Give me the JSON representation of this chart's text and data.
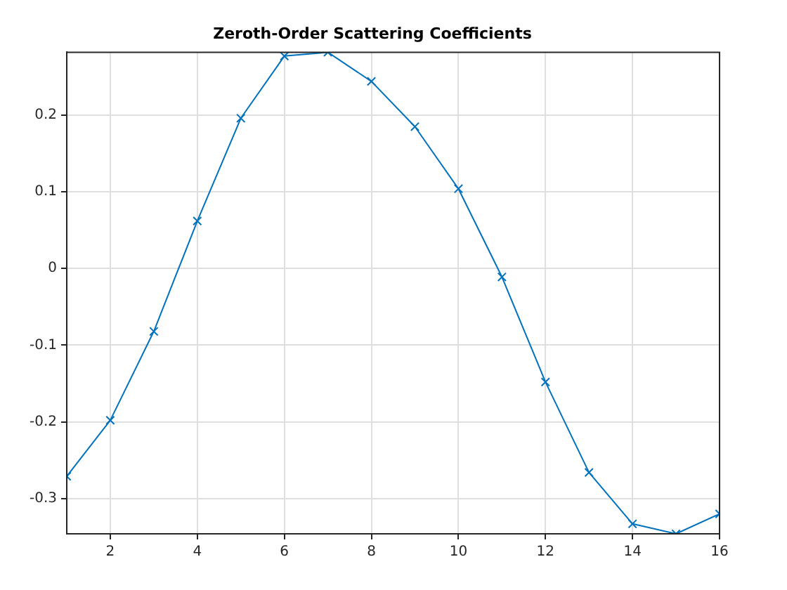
{
  "chart_data": {
    "type": "line",
    "title": "Zeroth-Order Scattering Coefficients",
    "x": [
      1,
      2,
      3,
      4,
      5,
      6,
      7,
      8,
      9,
      10,
      11,
      12,
      13,
      14,
      15,
      16
    ],
    "series": [
      {
        "color": "#0072bd",
        "values": [
          -0.271,
          -0.198,
          -0.082,
          0.062,
          0.196,
          0.277,
          0.282,
          0.244,
          0.185,
          0.104,
          -0.011,
          -0.148,
          -0.266,
          -0.333,
          -0.346,
          -0.32
        ]
      }
    ],
    "xlim": [
      1,
      16
    ],
    "xticks": [
      2,
      4,
      6,
      8,
      10,
      12,
      14,
      16
    ],
    "ylim": [
      -0.346,
      0.282
    ],
    "yticks": [
      -0.3,
      -0.2,
      -0.1,
      0,
      0.1,
      0.2
    ],
    "grid": true,
    "legend": false,
    "marker": "cross",
    "line_style": "solid"
  }
}
